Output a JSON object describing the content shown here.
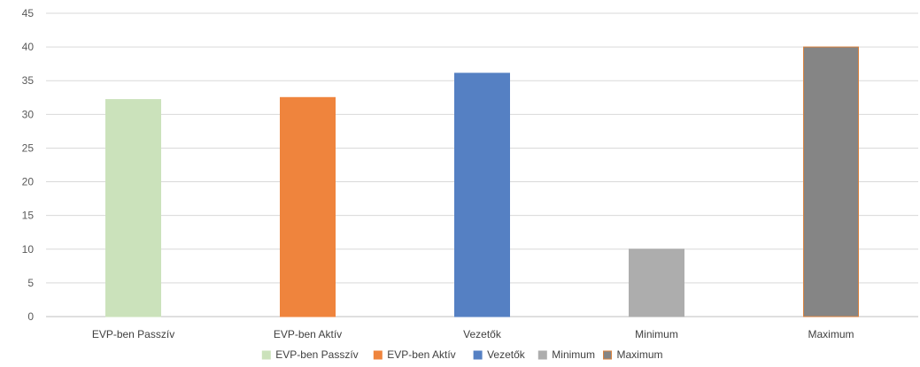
{
  "chart_data": {
    "type": "bar",
    "categories": [
      "EVP-ben Passzív",
      "EVP-ben Aktív",
      "Vezetők",
      "Minimum",
      "Maximum"
    ],
    "values": [
      32.2,
      32.5,
      36.1,
      10,
      40
    ],
    "colors": [
      "#cbe2bb",
      "#ef843d",
      "#5580c3",
      "#adadad",
      "#858585"
    ],
    "outline_colors": [
      "#cbe2bb",
      "#ef843d",
      "#5580c3",
      "#adadad",
      "#d9823f"
    ],
    "ylim": [
      0,
      45
    ],
    "yticks": [
      0,
      5,
      10,
      15,
      20,
      25,
      30,
      35,
      40,
      45
    ],
    "grid": true,
    "legend_position": "bottom",
    "title": "",
    "xlabel": "",
    "ylabel": ""
  }
}
